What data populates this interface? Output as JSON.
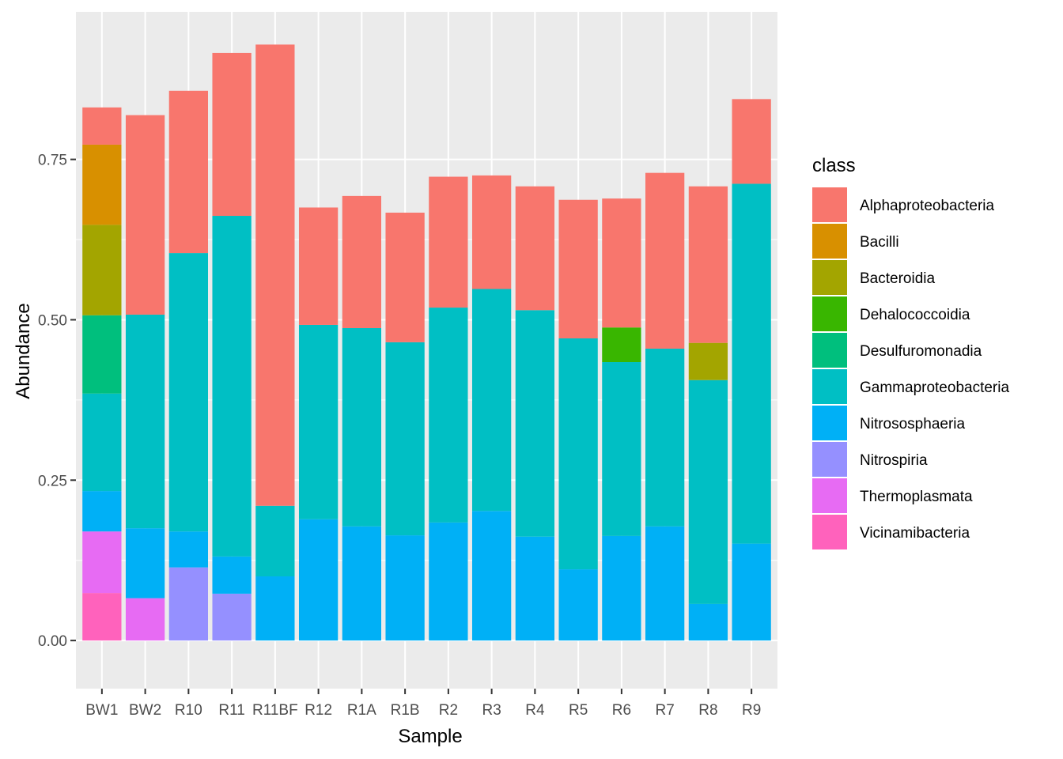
{
  "chart_data": {
    "type": "bar",
    "stacked": true,
    "xlabel": "Sample",
    "ylabel": "Abundance",
    "ylim": [
      -0.075,
      0.98
    ],
    "yticks": [
      0.0,
      0.25,
      0.5,
      0.75
    ],
    "ytick_labels": [
      "0.00",
      "0.25",
      "0.50",
      "0.75"
    ],
    "grid": true,
    "legend": {
      "title": "class",
      "position": "right"
    },
    "categories": [
      "BW1",
      "BW2",
      "R10",
      "R11",
      "R11BF",
      "R12",
      "R1A",
      "R1B",
      "R2",
      "R3",
      "R4",
      "R5",
      "R6",
      "R7",
      "R8",
      "R9"
    ],
    "classes": [
      {
        "name": "Alphaproteobacteria",
        "color": "#F8766D"
      },
      {
        "name": "Bacilli",
        "color": "#D89000"
      },
      {
        "name": "Bacteroidia",
        "color": "#A3A500"
      },
      {
        "name": "Dehalococcoidia",
        "color": "#39B600"
      },
      {
        "name": "Desulfuromonadia",
        "color": "#00BF7D"
      },
      {
        "name": "Gammaproteobacteria",
        "color": "#00BFC4"
      },
      {
        "name": "Nitrososphaeria",
        "color": "#00B0F6"
      },
      {
        "name": "Nitrospiria",
        "color": "#9590FF"
      },
      {
        "name": "Thermoplasmata",
        "color": "#E76BF3"
      },
      {
        "name": "Vicinamibacteria",
        "color": "#FF62BC"
      }
    ],
    "stack_order_bottom_to_top": [
      "Vicinamibacteria",
      "Thermoplasmata",
      "Nitrospiria",
      "Nitrososphaeria",
      "Gammaproteobacteria",
      "Desulfuromonadia",
      "Dehalococcoidia",
      "Bacteroidia",
      "Bacilli",
      "Alphaproteobacteria"
    ],
    "series": [
      {
        "name": "Alphaproteobacteria",
        "values": [
          0.058,
          0.311,
          0.253,
          0.254,
          0.719,
          0.183,
          0.206,
          0.202,
          0.204,
          0.177,
          0.193,
          0.216,
          0.201,
          0.274,
          0.244,
          0.132
        ]
      },
      {
        "name": "Bacilli",
        "values": [
          0.125,
          0,
          0,
          0,
          0,
          0,
          0,
          0,
          0,
          0,
          0,
          0,
          0,
          0,
          0,
          0
        ]
      },
      {
        "name": "Bacteroidia",
        "values": [
          0.141,
          0,
          0,
          0,
          0,
          0,
          0,
          0,
          0,
          0,
          0,
          0,
          0,
          0,
          0.058,
          0
        ]
      },
      {
        "name": "Dehalococcoidia",
        "values": [
          0,
          0,
          0,
          0,
          0,
          0,
          0,
          0,
          0,
          0,
          0,
          0,
          0.054,
          0,
          0,
          0
        ]
      },
      {
        "name": "Desulfuromonadia",
        "values": [
          0.122,
          0,
          0,
          0,
          0,
          0,
          0,
          0,
          0,
          0,
          0,
          0,
          0,
          0,
          0,
          0
        ]
      },
      {
        "name": "Gammaproteobacteria",
        "values": [
          0.152,
          0.333,
          0.434,
          0.531,
          0.11,
          0.303,
          0.309,
          0.301,
          0.335,
          0.346,
          0.353,
          0.36,
          0.271,
          0.277,
          0.349,
          0.561
        ]
      },
      {
        "name": "Nitrososphaeria",
        "values": [
          0.063,
          0.109,
          0.056,
          0.058,
          0.1,
          0.189,
          0.178,
          0.164,
          0.184,
          0.202,
          0.162,
          0.111,
          0.163,
          0.178,
          0.057,
          0.151
        ]
      },
      {
        "name": "Nitrospiria",
        "values": [
          0,
          0,
          0.114,
          0.073,
          0,
          0,
          0,
          0,
          0,
          0,
          0,
          0,
          0,
          0,
          0,
          0
        ]
      },
      {
        "name": "Thermoplasmata",
        "values": [
          0.096,
          0.066,
          0,
          0,
          0,
          0,
          0,
          0,
          0,
          0,
          0,
          0,
          0,
          0,
          0,
          0
        ]
      },
      {
        "name": "Vicinamibacteria",
        "values": [
          0.074,
          0,
          0,
          0,
          0,
          0,
          0,
          0,
          0,
          0,
          0,
          0,
          0,
          0,
          0,
          0
        ]
      }
    ]
  }
}
